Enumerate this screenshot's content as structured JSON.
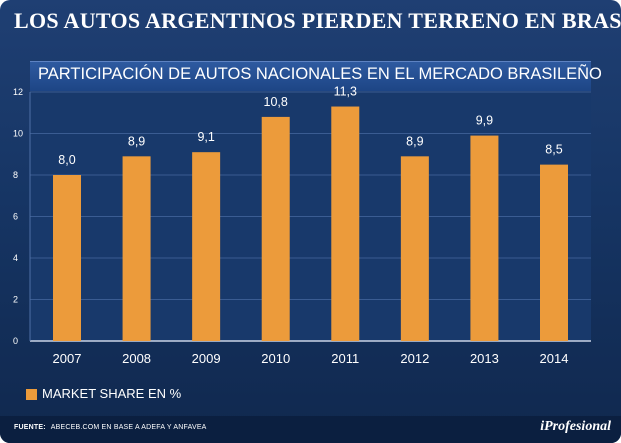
{
  "header": {
    "title": "LOS AUTOS ARGENTINOS PIERDEN TERRENO EN BRASIL"
  },
  "legend": {
    "label": "MARKET SHARE EN %"
  },
  "footer": {
    "source_label": "FUENTE:",
    "source_text": "ABECEB.COM EN BASE A ADEFA Y ANFAVEA",
    "brand": "iProfesional"
  },
  "colors": {
    "background": "#163564",
    "bar": "#ec9b3b",
    "band": "#1d4585",
    "text": "#ffffff"
  },
  "chart_data": {
    "type": "bar",
    "title": "PARTICIPACIÓN DE AUTOS NACIONALES EN EL MERCADO BRASILEÑO",
    "xlabel": "",
    "ylabel": "",
    "categories": [
      "2007",
      "2008",
      "2009",
      "2010",
      "2011",
      "2012",
      "2013",
      "2014"
    ],
    "series": [
      {
        "name": "MARKET SHARE EN %",
        "values": [
          8.0,
          8.9,
          9.1,
          10.8,
          11.3,
          8.9,
          9.9,
          8.5
        ]
      }
    ],
    "value_labels": [
      "8,0",
      "8,9",
      "9,1",
      "10,8",
      "11,3",
      "8,9",
      "9,9",
      "8,5"
    ],
    "yticks": [
      "0",
      "2",
      "4",
      "6",
      "8",
      "10",
      "12"
    ],
    "ylim": [
      0,
      12
    ],
    "grid": true,
    "legend_position": "bottom-left"
  }
}
